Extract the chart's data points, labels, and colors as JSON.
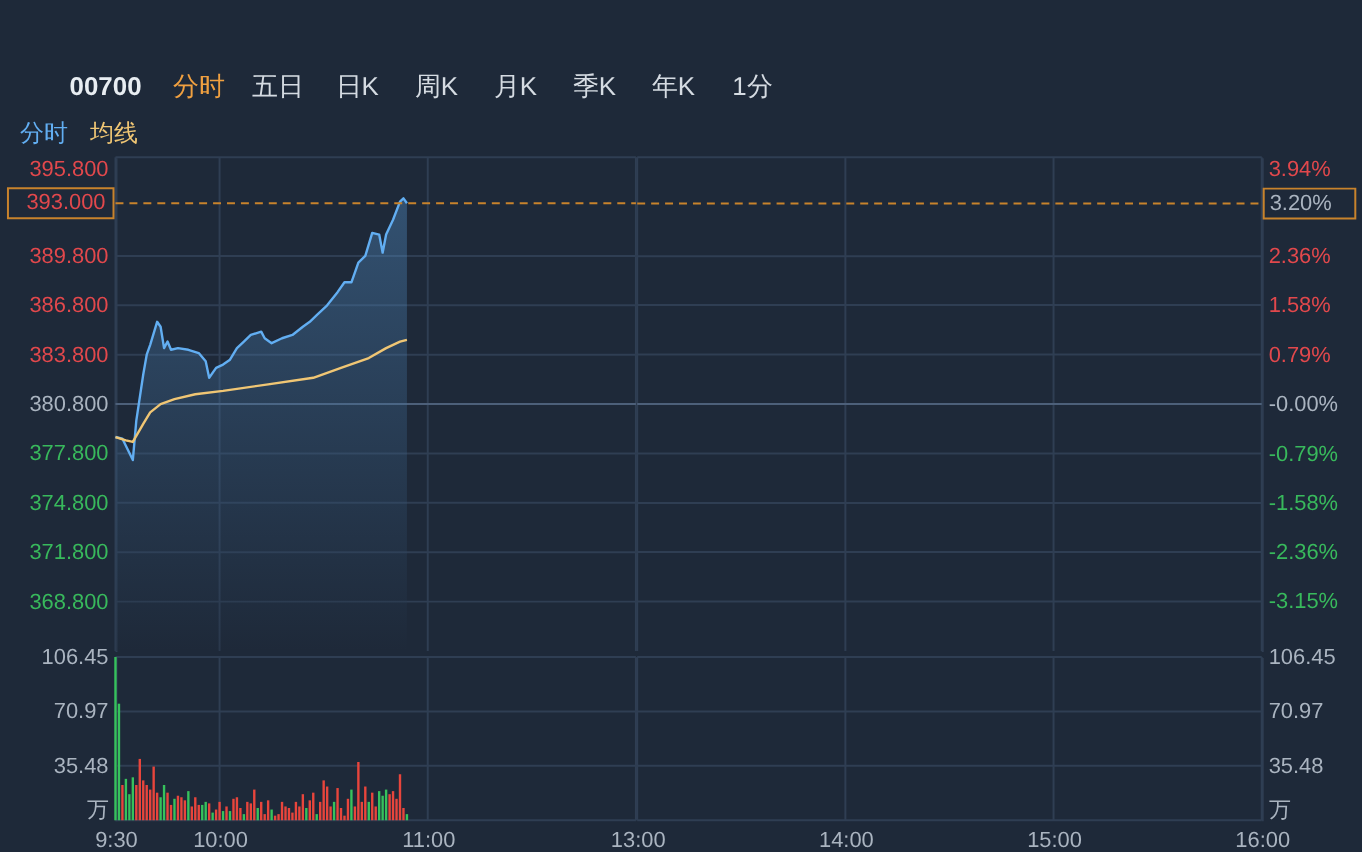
{
  "chart_data": [
    {
      "type": "area",
      "title": "00700",
      "annotations": [
        "分时",
        "五日",
        "日K",
        "周K",
        "月K",
        "季K",
        "年K",
        "1分"
      ],
      "legend": "top left",
      "grid": true,
      "tick_labels": "y",
      "xlim": [
        9.5,
        12
      ],
      "xticks": [
        {
          "value": 9.5,
          "label": null
        },
        {
          "value": 10,
          "label": null
        },
        {
          "value": 11,
          "label": null
        },
        {
          "value": 12,
          "label": null
        }
      ],
      "ylim": [
        365.8,
        395.8
      ],
      "yticks": [
        {
          "value": 368.8,
          "label": "368.800"
        },
        {
          "value": 371.8,
          "label": "371.800"
        },
        {
          "value": 374.8,
          "label": "374.800"
        },
        {
          "value": 377.8,
          "label": "377.800"
        },
        {
          "value": 380.8,
          "label": "380.800"
        },
        {
          "value": 383.8,
          "label": "383.800"
        },
        {
          "value": 386.8,
          "label": "386.800"
        },
        {
          "value": 389.8,
          "label": "389.800"
        },
        {
          "value": 395.8,
          "label": "395.800"
        }
      ],
      "series": [
        {
          "name": "分时",
          "type": "area",
          "color": "#62aef2",
          "x": [
            9.5,
            9.5333,
            9.5833,
            9.6,
            9.6333,
            9.65,
            9.6667,
            9.7,
            9.7167,
            9.7333,
            9.75,
            9.7667,
            9.8,
            9.85,
            9.9,
            9.9333,
            9.95,
            9.9833,
            10.0167,
            10.05,
            10.0833,
            10.1167,
            10.15,
            10.2,
            10.2167,
            10.25,
            10.3,
            10.35,
            10.4,
            10.4333,
            10.4667,
            10.5167,
            10.5667,
            10.6,
            10.6333,
            10.6667,
            10.7,
            10.7333,
            10.7667,
            10.7833,
            10.8,
            10.8333,
            10.8667,
            10.8833,
            10.9
          ],
          "values": [
            378.8,
            378.7,
            377.4,
            379.8,
            382.6,
            383.8,
            384.4,
            385.8,
            385.5,
            384.2,
            384.6,
            384.1,
            384.2,
            384.1,
            383.9,
            383.4,
            382.4,
            383.0,
            383.2,
            383.5,
            384.2,
            384.6,
            385.0,
            385.2,
            384.8,
            384.5,
            384.8,
            385.0,
            385.5,
            385.8,
            386.2,
            386.8,
            387.6,
            388.2,
            388.2,
            389.4,
            389.8,
            391.2,
            391.1,
            390.0,
            391.1,
            392.0,
            393.1,
            393.3,
            393.0
          ]
        },
        {
          "name": "均线",
          "type": "line",
          "color": "#f0c674",
          "x": [
            9.5,
            9.55,
            9.5833,
            9.6333,
            9.6667,
            9.7167,
            9.7833,
            9.8833,
            10.0167,
            10.2333,
            10.45,
            10.5833,
            10.7167,
            10.8,
            10.8667,
            10.9
          ],
          "values": [
            378.8,
            378.6,
            378.5,
            379.6,
            380.3,
            380.8,
            381.1,
            381.4,
            381.6,
            382.0,
            382.4,
            383.0,
            383.6,
            384.2,
            384.6,
            384.7
          ]
        }
      ],
      "ref_lines": [
        {
          "axis": "y",
          "value": 380.8,
          "color": "#4d607a"
        },
        {
          "axis": "y",
          "value": 393.0,
          "label": "393.000",
          "color": "#c8832c",
          "line_style": "dashed"
        }
      ]
    },
    {
      "type": "area",
      "grid": true,
      "tick_labels": "y",
      "xlim": [
        13,
        16
      ],
      "xticks": [
        {
          "value": 13,
          "label": null
        },
        {
          "value": 14,
          "label": null
        },
        {
          "value": 15,
          "label": null
        },
        {
          "value": 16,
          "label": null
        }
      ],
      "y2lim": [
        -3.94,
        3.94
      ],
      "y2ticks": [
        {
          "value": -3.15,
          "label": "-3.15%"
        },
        {
          "value": -2.36,
          "label": "-2.36%"
        },
        {
          "value": -1.58,
          "label": "-1.58%"
        },
        {
          "value": -0.79,
          "label": "-0.79%"
        },
        {
          "value": 0,
          "label": "-0.00%"
        },
        {
          "value": 0.79,
          "label": "0.79%"
        },
        {
          "value": 1.58,
          "label": "1.58%"
        },
        {
          "value": 2.36,
          "label": "2.36%"
        },
        {
          "value": 3.94,
          "label": "3.94%"
        }
      ],
      "ref_lines": [
        {
          "axis": "y2",
          "value": 0,
          "color": "#4d607a"
        },
        {
          "axis": "y2",
          "value": 3.2,
          "label": "3.20%",
          "color": "#c8832c",
          "line_style": "dashed"
        }
      ]
    },
    {
      "type": "bar",
      "grid": true,
      "xlim": [
        9.5,
        12
      ],
      "xticks": [
        {
          "value": 9.5,
          "label": "9:30"
        },
        {
          "value": 10,
          "label": "10:00"
        },
        {
          "value": 11,
          "label": "11:00"
        },
        {
          "value": 12,
          "label": null
        }
      ],
      "ylim": [
        0,
        106.45
      ],
      "yticks": [
        {
          "value": 0,
          "label": "万"
        },
        35.48,
        70.97,
        106.45
      ],
      "x": [
        9.5,
        9.5167,
        9.5333,
        9.55,
        9.5667,
        9.5833,
        9.6,
        9.6167,
        9.6333,
        9.65,
        9.6667,
        9.6833,
        9.7,
        9.7167,
        9.7333,
        9.75,
        9.7667,
        9.7833,
        9.8,
        9.8167,
        9.8333,
        9.85,
        9.8667,
        9.8833,
        9.9,
        9.9167,
        9.9333,
        9.95,
        9.9667,
        9.9833,
        10.0,
        10.0167,
        10.0333,
        10.05,
        10.0667,
        10.0833,
        10.1,
        10.1167,
        10.1333,
        10.15,
        10.1667,
        10.1833,
        10.2,
        10.2167,
        10.2333,
        10.25,
        10.2667,
        10.2833,
        10.3,
        10.3167,
        10.3333,
        10.35,
        10.3667,
        10.3833,
        10.4,
        10.4167,
        10.4333,
        10.45,
        10.4667,
        10.4833,
        10.5,
        10.5167,
        10.5333,
        10.55,
        10.5667,
        10.5833,
        10.6,
        10.6167,
        10.6333,
        10.65,
        10.6667,
        10.6833,
        10.7,
        10.7167,
        10.7333,
        10.75,
        10.7667,
        10.7833,
        10.8,
        10.8167,
        10.8333,
        10.85,
        10.8667,
        10.8833,
        10.9
      ],
      "values": [
        106.45,
        76,
        23,
        27,
        17,
        28,
        23,
        40,
        26,
        23,
        20,
        35,
        18,
        15,
        23,
        18,
        10,
        14,
        16,
        15,
        13,
        19,
        9,
        15,
        10,
        10,
        12,
        11,
        5,
        7,
        12,
        6,
        9,
        6,
        14,
        15,
        8,
        4,
        12,
        11,
        20,
        8,
        12,
        4,
        13,
        7,
        3,
        4,
        12,
        9,
        8,
        5,
        12,
        9,
        17,
        8,
        13,
        18,
        4,
        12,
        26,
        22,
        9,
        12,
        21,
        8,
        3,
        14,
        20,
        9,
        38,
        12,
        22,
        12,
        18,
        9,
        19,
        16,
        20,
        17,
        19,
        14,
        30,
        8,
        4
      ],
      "colors": [
        "#36c25c",
        "#36c25c",
        "#e8453c",
        "#36c25c",
        "#36c25c",
        "#36c25c",
        "#e8453c",
        "#e8453c",
        "#e8453c",
        "#e8453c",
        "#e8453c",
        "#e8453c",
        "#e8453c",
        "#36c25c",
        "#36c25c",
        "#e8453c",
        "#e8453c",
        "#36c25c",
        "#e8453c",
        "#e8453c",
        "#e8453c",
        "#36c25c",
        "#e8453c",
        "#e8453c",
        "#e8453c",
        "#36c25c",
        "#36c25c",
        "#e8453c",
        "#36c25c",
        "#e8453c",
        "#e8453c",
        "#36c25c",
        "#e8453c",
        "#36c25c",
        "#e8453c",
        "#e8453c",
        "#e8453c",
        "#36c25c",
        "#e8453c",
        "#e8453c",
        "#e8453c",
        "#36c25c",
        "#e8453c",
        "#e8453c",
        "#e8453c",
        "#36c25c",
        "#e8453c",
        "#e8453c",
        "#e8453c",
        "#e8453c",
        "#e8453c",
        "#e8453c",
        "#e8453c",
        "#e8453c",
        "#e8453c",
        "#36c25c",
        "#e8453c",
        "#e8453c",
        "#36c25c",
        "#e8453c",
        "#e8453c",
        "#e8453c",
        "#e8453c",
        "#36c25c",
        "#e8453c",
        "#e8453c",
        "#e8453c",
        "#e8453c",
        "#36c25c",
        "#e8453c",
        "#e8453c",
        "#e8453c",
        "#e8453c",
        "#36c25c",
        "#e8453c",
        "#e8453c",
        "#36c25c",
        "#36c25c",
        "#36c25c",
        "#e8453c",
        "#e8453c",
        "#e8453c",
        "#e8453c",
        "#e8453c",
        "#36c25c"
      ]
    },
    {
      "type": "bar",
      "grid": true,
      "xlim": [
        13,
        16
      ],
      "xticks": [
        {
          "value": 13,
          "label": "13:00"
        },
        {
          "value": 14,
          "label": "14:00"
        },
        {
          "value": 15,
          "label": "15:00"
        },
        {
          "value": 16,
          "label": "16:00"
        }
      ],
      "y2lim": [
        0,
        106.45
      ],
      "y2ticks": [
        {
          "value": 0,
          "label": "万"
        },
        35.48,
        70.97,
        106.45
      ]
    }
  ]
}
